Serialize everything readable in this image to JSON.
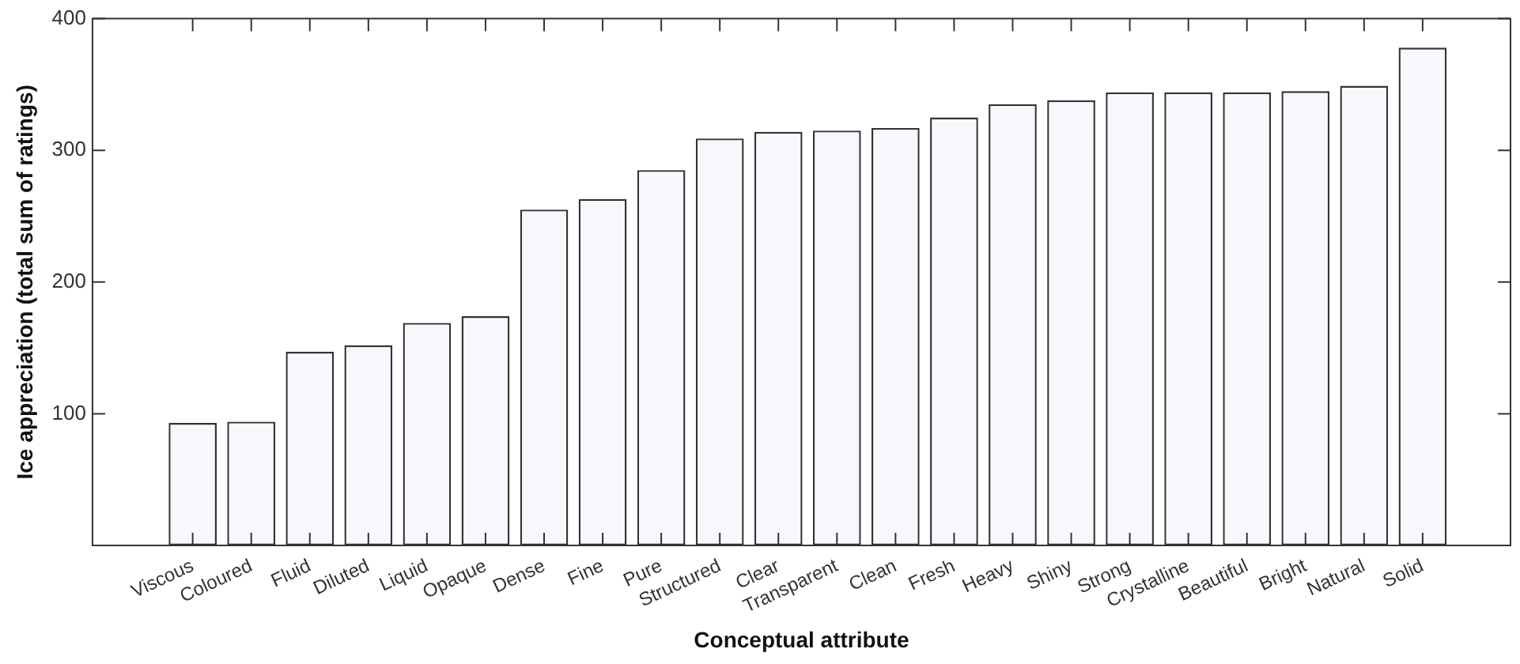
{
  "chart_data": {
    "type": "bar",
    "xlabel": "Conceptual attribute",
    "ylabel": "Ice appreciation (total sum of ratings)",
    "categories": [
      "Viscous",
      "Coloured",
      "Fluid",
      "Diluted",
      "Liquid",
      "Opaque",
      "Dense",
      "Fine",
      "Pure",
      "Structured",
      "Clear",
      "Transparent",
      "Clean",
      "Fresh",
      "Heavy",
      "Shiny",
      "Strong",
      "Crystalline",
      "Beautiful",
      "Bright",
      "Natural",
      "Solid"
    ],
    "values": [
      93,
      94,
      147,
      152,
      169,
      174,
      255,
      263,
      285,
      309,
      314,
      315,
      317,
      325,
      335,
      338,
      344,
      344,
      344,
      345,
      349,
      378
    ],
    "color": "#f7f8fe",
    "ylim": [
      0,
      400
    ],
    "yticks": [
      100,
      200,
      300,
      400
    ],
    "grid": false,
    "legend": false
  }
}
